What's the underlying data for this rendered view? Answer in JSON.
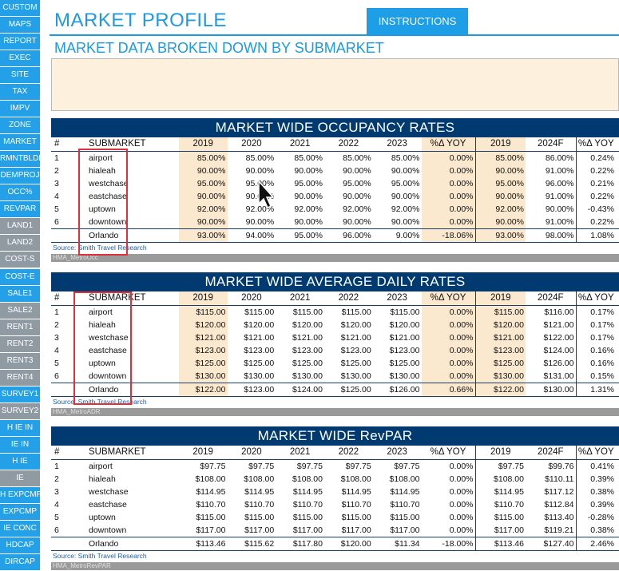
{
  "sidebar": {
    "items": [
      {
        "label": "CUSTOM",
        "style": "blue"
      },
      {
        "label": "MAPS",
        "style": "blue"
      },
      {
        "label": "REPORT",
        "style": "blue"
      },
      {
        "label": "EXEC",
        "style": "blue"
      },
      {
        "label": "SITE",
        "style": "blue"
      },
      {
        "label": "TAX",
        "style": "blue"
      },
      {
        "label": "IMPV",
        "style": "blue"
      },
      {
        "label": "ZONE",
        "style": "blue"
      },
      {
        "label": "MARKET",
        "style": "blue"
      },
      {
        "label": "RMNTBLDR",
        "style": "blue"
      },
      {
        "label": "DEMPROJ",
        "style": "blue"
      },
      {
        "label": "OCC%",
        "style": "blue"
      },
      {
        "label": "REVPAR",
        "style": "blue"
      },
      {
        "label": "LAND1",
        "style": "gray"
      },
      {
        "label": "LAND2",
        "style": "gray"
      },
      {
        "label": "COST-S",
        "style": "gray"
      },
      {
        "label": "COST-E",
        "style": "blue"
      },
      {
        "label": "SALE1",
        "style": "blue"
      },
      {
        "label": "SALE2",
        "style": "gray"
      },
      {
        "label": "RENT1",
        "style": "gray"
      },
      {
        "label": "RENT2",
        "style": "gray"
      },
      {
        "label": "RENT3",
        "style": "gray"
      },
      {
        "label": "RENT4",
        "style": "gray"
      },
      {
        "label": "SURVEY1",
        "style": "blue"
      },
      {
        "label": "SURVEY2",
        "style": "gray"
      },
      {
        "label": "H IE IN",
        "style": "blue"
      },
      {
        "label": "IE IN",
        "style": "blue"
      },
      {
        "label": "H IE",
        "style": "blue"
      },
      {
        "label": "IE",
        "style": "gray"
      },
      {
        "label": "H EXPCMP",
        "style": "blue"
      },
      {
        "label": "EXPCMP",
        "style": "blue"
      },
      {
        "label": "IE CONC",
        "style": "blue"
      },
      {
        "label": "HDCAP",
        "style": "blue"
      },
      {
        "label": "DIRCAP",
        "style": "blue"
      }
    ]
  },
  "header": {
    "title": "MARKET PROFILE",
    "instructions_label": "INSTRUCTIONS",
    "subtitle": "MARKET DATA BROKEN DOWN BY SUBMARKET"
  },
  "columns": [
    "#",
    "SUBMARKET",
    "2019",
    "2020",
    "2021",
    "2022",
    "2023",
    "%Δ YOY",
    "2019",
    "2024F",
    "%Δ YOY"
  ],
  "tables": [
    {
      "title": "MARKET WIDE OCCUPANCY RATES",
      "cream": true,
      "rows": [
        [
          "1",
          "airport",
          "85.00%",
          "85.00%",
          "85.00%",
          "85.00%",
          "85.00%",
          "0.00%",
          "85.00%",
          "86.00%",
          "0.24%"
        ],
        [
          "2",
          "hialeah",
          "90.00%",
          "90.00%",
          "90.00%",
          "90.00%",
          "90.00%",
          "0.00%",
          "90.00%",
          "91.00%",
          "0.22%"
        ],
        [
          "3",
          "westchase",
          "95.00%",
          "95.00%",
          "95.00%",
          "95.00%",
          "95.00%",
          "0.00%",
          "95.00%",
          "96.00%",
          "0.21%"
        ],
        [
          "4",
          "eastchase",
          "90.00%",
          "90.00%",
          "90.00%",
          "90.00%",
          "90.00%",
          "0.00%",
          "90.00%",
          "91.00%",
          "0.22%"
        ],
        [
          "5",
          "uptown",
          "92.00%",
          "92.00%",
          "92.00%",
          "92.00%",
          "92.00%",
          "0.00%",
          "92.00%",
          "90.00%",
          "-0.43%"
        ],
        [
          "6",
          "downtown",
          "90.00%",
          "90.00%",
          "90.00%",
          "90.00%",
          "90.00%",
          "0.00%",
          "90.00%",
          "91.00%",
          "0.22%"
        ]
      ],
      "total": [
        "",
        "Orlando",
        "93.00%",
        "94.00%",
        "95.00%",
        "96.00%",
        "9.00%",
        "-18.06%",
        "93.00%",
        "98.00%",
        "1.08%"
      ],
      "source": "Source: Smith Travel Research",
      "footer": "HMA_MetroOcc"
    },
    {
      "title": "MARKET WIDE AVERAGE DAILY RATES",
      "cream": true,
      "rows": [
        [
          "1",
          "airport",
          "$115.00",
          "$115.00",
          "$115.00",
          "$115.00",
          "$115.00",
          "0.00%",
          "$115.00",
          "$116.00",
          "0.17%"
        ],
        [
          "2",
          "hialeah",
          "$120.00",
          "$120.00",
          "$120.00",
          "$120.00",
          "$120.00",
          "0.00%",
          "$120.00",
          "$121.00",
          "0.17%"
        ],
        [
          "3",
          "westchase",
          "$121.00",
          "$121.00",
          "$121.00",
          "$121.00",
          "$121.00",
          "0.00%",
          "$121.00",
          "$122.00",
          "0.17%"
        ],
        [
          "4",
          "eastchase",
          "$123.00",
          "$123.00",
          "$123.00",
          "$123.00",
          "$123.00",
          "0.00%",
          "$123.00",
          "$124.00",
          "0.16%"
        ],
        [
          "5",
          "uptown",
          "$125.00",
          "$125.00",
          "$125.00",
          "$125.00",
          "$125.00",
          "0.00%",
          "$125.00",
          "$126.00",
          "0.16%"
        ],
        [
          "6",
          "downtown",
          "$130.00",
          "$130.00",
          "$130.00",
          "$130.00",
          "$130.00",
          "0.00%",
          "$130.00",
          "$131.00",
          "0.15%"
        ]
      ],
      "total": [
        "",
        "Orlando",
        "$122.00",
        "$123.00",
        "$124.00",
        "$125.00",
        "$126.00",
        "0.66%",
        "$122.00",
        "$130.00",
        "1.31%"
      ],
      "source": "Source: Smith Travel Research",
      "footer": "HMA_MetroADR"
    },
    {
      "title": "MARKET WIDE RevPAR",
      "cream": false,
      "rows": [
        [
          "1",
          "airport",
          "$97.75",
          "$97.75",
          "$97.75",
          "$97.75",
          "$97.75",
          "0.00%",
          "$97.75",
          "$99.76",
          "0.41%"
        ],
        [
          "2",
          "hialeah",
          "$108.00",
          "$108.00",
          "$108.00",
          "$108.00",
          "$108.00",
          "0.00%",
          "$108.00",
          "$110.11",
          "0.39%"
        ],
        [
          "3",
          "westchase",
          "$114.95",
          "$114.95",
          "$114.95",
          "$114.95",
          "$114.95",
          "0.00%",
          "$114.95",
          "$117.12",
          "0.38%"
        ],
        [
          "4",
          "eastchase",
          "$110.70",
          "$110.70",
          "$110.70",
          "$110.70",
          "$110.70",
          "0.00%",
          "$110.70",
          "$112.84",
          "0.39%"
        ],
        [
          "5",
          "uptown",
          "$115.00",
          "$115.00",
          "$115.00",
          "$115.00",
          "$115.00",
          "0.00%",
          "$115.00",
          "$113.40",
          "-0.28%"
        ],
        [
          "6",
          "downtown",
          "$117.00",
          "$117.00",
          "$117.00",
          "$117.00",
          "$117.00",
          "0.00%",
          "$117.00",
          "$119.21",
          "0.38%"
        ]
      ],
      "total": [
        "",
        "Orlando",
        "$113.46",
        "$115.62",
        "$117.80",
        "$120.00",
        "$11.34",
        "-18.00%",
        "$113.46",
        "$127.40",
        "2.46%"
      ],
      "source": "Source: Smith Travel Research",
      "footer": "HMA_MetroRevPAR"
    }
  ],
  "colors": {
    "accent": "#1c9be0",
    "banner": "#003a70",
    "cream": "#fbe9cf",
    "highlight": "#e0303a"
  }
}
